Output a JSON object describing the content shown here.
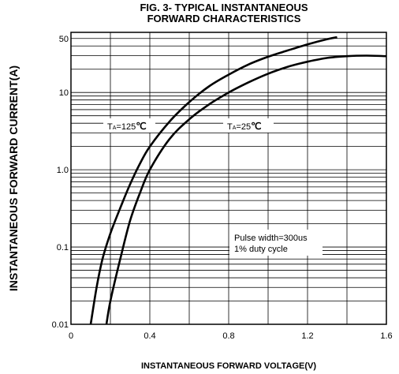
{
  "chart_data": {
    "type": "line",
    "title_line1": "FIG. 3- TYPICAL INSTANTANEOUS",
    "title_line2": "FORWARD CHARACTERISTICS",
    "xlabel": "INSTANTANEOUS FORWARD VOLTAGE(V)",
    "ylabel": "INSTANTANEOUS FORWARD CURRENT(A)",
    "xlim": [
      0,
      1.6
    ],
    "ylim": [
      0.01,
      60
    ],
    "yscale": "log",
    "grid": true,
    "x_ticks": [
      "0",
      "0.4",
      "0.8",
      "1.2",
      "1.6"
    ],
    "y_ticks": [
      "0.01",
      "0.1",
      "1.0",
      "10",
      "50"
    ],
    "series": [
      {
        "name": "TA=125℃",
        "x": [
          0.1,
          0.13,
          0.16,
          0.2,
          0.25,
          0.3,
          0.35,
          0.4,
          0.5,
          0.6,
          0.7,
          0.8,
          0.9,
          1.0,
          1.1,
          1.2,
          1.3,
          1.35
        ],
        "y": [
          0.01,
          0.03,
          0.07,
          0.15,
          0.32,
          0.65,
          1.2,
          2.0,
          4.2,
          7.5,
          12,
          17,
          23,
          29,
          35,
          42,
          49,
          52
        ]
      },
      {
        "name": "TA=25℃",
        "x": [
          0.18,
          0.2,
          0.25,
          0.3,
          0.35,
          0.4,
          0.5,
          0.6,
          0.7,
          0.8,
          0.9,
          1.0,
          1.1,
          1.2,
          1.3,
          1.4,
          1.5,
          1.6
        ],
        "y": [
          0.01,
          0.02,
          0.07,
          0.22,
          0.5,
          1.0,
          2.5,
          4.5,
          7.0,
          10,
          13.5,
          17.5,
          21.5,
          25,
          28,
          29.5,
          30,
          29.5
        ]
      }
    ],
    "annotations": {
      "ta125": {
        "prefix": "T",
        "sub": "A",
        "value": "=125",
        "unit": "℃"
      },
      "ta25": {
        "prefix": "T",
        "sub": "A",
        "value": "=25",
        "unit": "℃"
      },
      "pulse_line1": "Pulse width=300us",
      "pulse_line2": "1% duty cycle"
    },
    "colors": {
      "line": "#000000",
      "grid": "#000000",
      "background": "#ffffff"
    }
  }
}
